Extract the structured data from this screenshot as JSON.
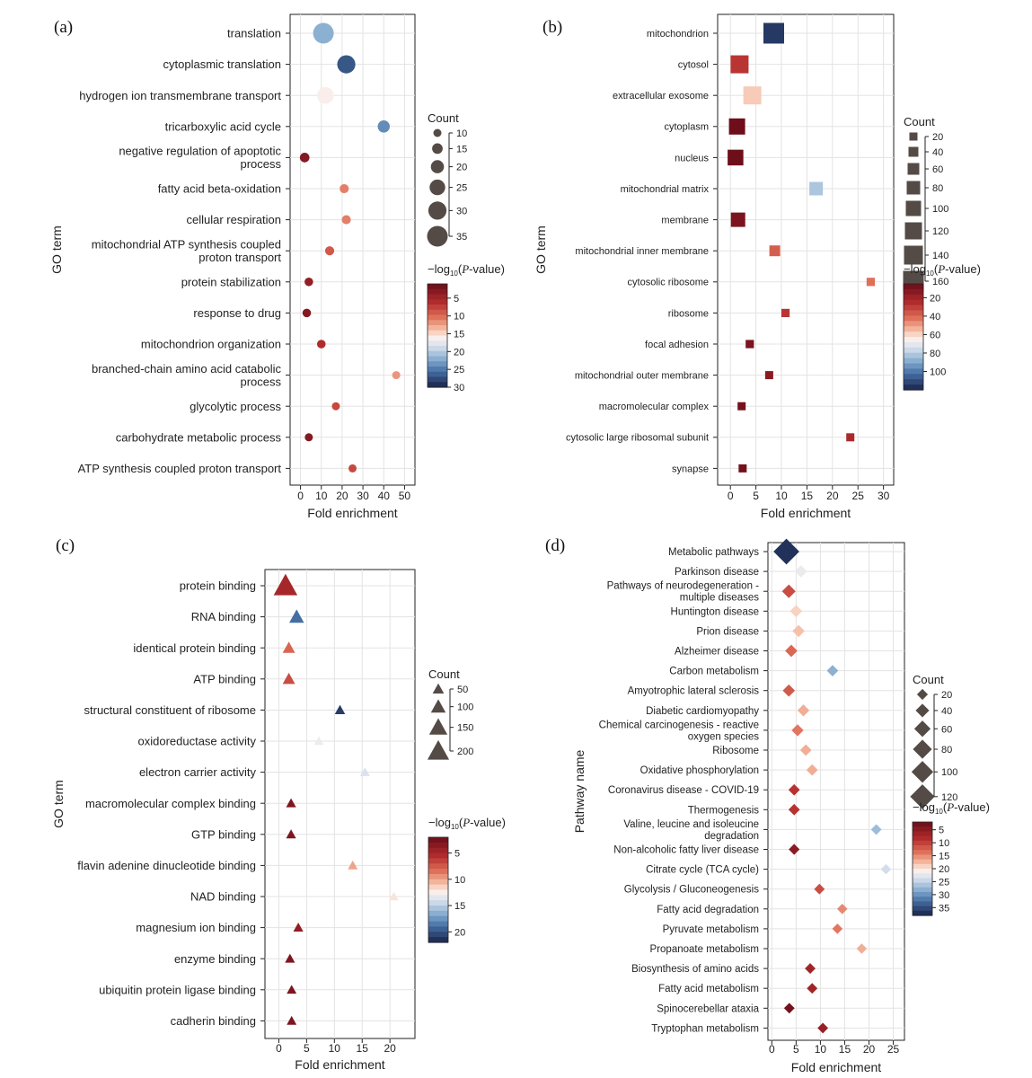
{
  "chart_data": [
    {
      "panel": "(a)",
      "type": "scatter",
      "marker": "circle",
      "xlabel": "Fold enrichment",
      "ylabel": "GO term",
      "xlim": [
        -5,
        55
      ],
      "xticks": [
        0,
        10,
        20,
        30,
        40,
        50
      ],
      "grid": true,
      "categories": [
        "translation",
        "cytoplasmic translation",
        "hydrogen ion transmembrane transport",
        "tricarboxylic acid cycle",
        "negative regulation of apoptotic process",
        "fatty acid beta-oxidation",
        "cellular respiration",
        "mitochondrial ATP synthesis coupled proton transport",
        "protein stabilization",
        "response to drug",
        "mitochondrion organization",
        "branched-chain amino acid catabolic process",
        "glycolytic process",
        "carbohydrate metabolic process",
        "ATP synthesis coupled proton transport"
      ],
      "category_lines": [
        [
          "translation"
        ],
        [
          "cytoplasmic translation"
        ],
        [
          "hydrogen ion transmembrane transport"
        ],
        [
          "tricarboxylic acid cycle"
        ],
        [
          "negative regulation of apoptotic",
          "process"
        ],
        [
          "fatty acid beta-oxidation"
        ],
        [
          "cellular respiration"
        ],
        [
          "mitochondrial ATP synthesis coupled",
          "proton transport"
        ],
        [
          "protein stabilization"
        ],
        [
          "response to drug"
        ],
        [
          "mitochondrion organization"
        ],
        [
          "branched-chain amino acid catabolic",
          "process"
        ],
        [
          "glycolytic process"
        ],
        [
          "carbohydrate metabolic process"
        ],
        [
          "ATP synthesis coupled proton transport"
        ]
      ],
      "x": [
        11,
        22,
        12,
        40,
        2,
        21,
        22,
        14,
        4,
        3,
        10,
        46,
        17,
        4,
        25
      ],
      "count": [
        35,
        30,
        27,
        18,
        13,
        12,
        12,
        12,
        11,
        11,
        11,
        10,
        10,
        10,
        10
      ],
      "neglog10p": [
        22,
        27,
        16,
        24,
        3,
        11,
        11,
        9,
        4,
        3,
        6,
        12,
        8,
        3,
        8
      ],
      "size_legend": {
        "title": "Count",
        "values": [
          10,
          15,
          20,
          25,
          30,
          35
        ],
        "min": 10,
        "max": 35,
        "rmin": 4.5,
        "rmax": 11.5
      },
      "color_legend": {
        "title_parts": [
          "−log",
          "10",
          "(",
          "P",
          "-value)"
        ],
        "min": 1,
        "max": 30,
        "ticks": [
          5,
          10,
          15,
          20,
          25,
          30
        ]
      }
    },
    {
      "panel": "(b)",
      "type": "scatter",
      "marker": "square",
      "xlabel": "Fold enrichment",
      "ylabel": "GO term",
      "xlim": [
        -2.5,
        32
      ],
      "xticks": [
        0,
        5,
        10,
        15,
        20,
        25,
        30
      ],
      "grid": true,
      "categories": [
        "mitochondrion",
        "cytosol",
        "extracellular exosome",
        "cytoplasm",
        "nucleus",
        "mitochondrial matrix",
        "membrane",
        "mitochondrial inner membrane",
        "cytosolic ribosome",
        "ribosome",
        "focal adhesion",
        "mitochondrial outer membrane",
        "macromolecular complex",
        "cytosolic large ribosomal subunit",
        "synapse"
      ],
      "category_lines": [
        [
          "mitochondrion"
        ],
        [
          "cytosol"
        ],
        [
          "extracellular exosome"
        ],
        [
          "cytoplasm"
        ],
        [
          "nucleus"
        ],
        [
          "mitochondrial matrix"
        ],
        [
          "membrane"
        ],
        [
          "mitochondrial inner membrane"
        ],
        [
          "cytosolic ribosome"
        ],
        [
          "ribosome"
        ],
        [
          "focal adhesion"
        ],
        [
          "mitochondrial outer membrane"
        ],
        [
          "macromolecular complex"
        ],
        [
          "cytosolic large ribosomal subunit"
        ],
        [
          "synapse"
        ]
      ],
      "x": [
        8.5,
        1.8,
        4.3,
        1.3,
        1.0,
        16.8,
        1.5,
        8.7,
        27.5,
        10.8,
        3.8,
        7.6,
        2.2,
        23.5,
        2.4
      ],
      "count": [
        165,
        130,
        130,
        110,
        105,
        80,
        90,
        50,
        22,
        22,
        22,
        20,
        20,
        20,
        18
      ],
      "neglog10p": [
        115,
        28,
        58,
        6,
        6,
        82,
        10,
        38,
        42,
        28,
        10,
        14,
        8,
        24,
        8
      ],
      "size_legend": {
        "title": "Count",
        "values": [
          20,
          40,
          60,
          80,
          100,
          120,
          140,
          160
        ],
        "min": 20,
        "max": 160,
        "rmin": 4.5,
        "rmax": 11.5
      },
      "color_legend": {
        "title_parts": [
          "−log",
          "10",
          "(",
          "P",
          "-value)"
        ],
        "min": 5,
        "max": 120,
        "ticks": [
          20,
          40,
          60,
          80,
          100
        ]
      }
    },
    {
      "panel": "(c)",
      "type": "scatter",
      "marker": "triangle",
      "xlabel": "Fold enrichment",
      "ylabel": "GO term",
      "xlim": [
        -2.5,
        24.5
      ],
      "xticks": [
        0,
        5,
        10,
        15,
        20
      ],
      "grid": true,
      "categories": [
        "protein binding",
        "RNA binding",
        "identical protein binding",
        "ATP binding",
        "structural constituent of ribosome",
        "oxidoreductase activity",
        "electron carrier activity",
        "macromolecular complex binding",
        "GTP binding",
        "flavin adenine dinucleotide binding",
        "NAD binding",
        "magnesium ion binding",
        "enzyme binding",
        "ubiquitin protein ligase binding",
        "cadherin binding"
      ],
      "category_lines": [
        [
          "protein binding"
        ],
        [
          "RNA binding"
        ],
        [
          "identical protein binding"
        ],
        [
          "ATP binding"
        ],
        [
          "structural constituent of ribosome"
        ],
        [
          "oxidoreductase activity"
        ],
        [
          "electron carrier activity"
        ],
        [
          "macromolecular complex binding"
        ],
        [
          "GTP binding"
        ],
        [
          "flavin adenine dinucleotide binding"
        ],
        [
          "NAD binding"
        ],
        [
          "magnesium ion binding"
        ],
        [
          "enzyme binding"
        ],
        [
          "ubiquitin protein ligase binding"
        ],
        [
          "cadherin binding"
        ]
      ],
      "x": [
        1.2,
        3.2,
        1.8,
        1.8,
        11.0,
        7.2,
        15.5,
        2.2,
        2.2,
        13.3,
        20.7,
        3.5,
        2.0,
        2.3,
        2.3
      ],
      "count": [
        230,
        100,
        65,
        65,
        35,
        25,
        25,
        30,
        30,
        28,
        22,
        30,
        30,
        28,
        28
      ],
      "neglog10p": [
        5,
        19,
        8,
        7,
        21,
        13,
        14,
        3,
        3,
        10,
        12,
        4,
        3,
        3,
        3
      ],
      "size_legend": {
        "title": "Count",
        "values": [
          50,
          100,
          150,
          200
        ],
        "min": 20,
        "max": 230,
        "rmin": 4.5,
        "rmax": 11.5
      },
      "color_legend": {
        "title_parts": [
          "−log",
          "10",
          "(",
          "P",
          "-value)"
        ],
        "min": 2,
        "max": 22,
        "ticks": [
          5,
          10,
          15,
          20
        ]
      }
    },
    {
      "panel": "(d)",
      "type": "scatter",
      "marker": "diamond",
      "xlabel": "Fold enrichment",
      "ylabel": "Pathway name",
      "xlim": [
        -0.8,
        27.3
      ],
      "xticks": [
        0,
        5,
        10,
        15,
        20,
        25
      ],
      "grid": true,
      "categories": [
        "Metabolic pathways",
        "Parkinson disease",
        "Pathways of neurodegeneration - multiple diseases",
        "Huntington disease",
        "Prion disease",
        "Alzheimer disease",
        "Carbon metabolism",
        "Amyotrophic lateral sclerosis",
        "Diabetic cardiomyopathy",
        "Chemical carcinogenesis - reactive oxygen species",
        "Ribosome",
        "Oxidative phosphorylation",
        "Coronavirus disease - COVID-19",
        "Thermogenesis",
        "Valine, leucine and isoleucine degradation",
        "Non-alcoholic fatty liver disease",
        "Citrate cycle (TCA cycle)",
        "Glycolysis / Gluconeogenesis",
        "Fatty acid degradation",
        "Pyruvate metabolism",
        "Propanoate metabolism",
        "Biosynthesis of amino acids",
        "Fatty acid metabolism",
        "Spinocerebellar ataxia",
        "Tryptophan metabolism"
      ],
      "category_lines": [
        [
          "Metabolic pathways"
        ],
        [
          "Parkinson disease"
        ],
        [
          "Pathways of neurodegeneration -",
          "multiple diseases"
        ],
        [
          "Huntington disease"
        ],
        [
          "Prion disease"
        ],
        [
          "Alzheimer disease"
        ],
        [
          "Carbon metabolism"
        ],
        [
          "Amyotrophic lateral sclerosis"
        ],
        [
          "Diabetic cardiomyopathy"
        ],
        [
          "Chemical carcinogenesis - reactive",
          "oxygen species"
        ],
        [
          "Ribosome"
        ],
        [
          "Oxidative phosphorylation"
        ],
        [
          "Coronavirus disease - COVID-19"
        ],
        [
          "Thermogenesis"
        ],
        [
          "Valine, leucine and isoleucine",
          "degradation"
        ],
        [
          "Non-alcoholic fatty liver disease"
        ],
        [
          "Citrate cycle (TCA cycle)"
        ],
        [
          "Glycolysis / Gluconeogenesis"
        ],
        [
          "Fatty acid degradation"
        ],
        [
          "Pyruvate metabolism"
        ],
        [
          "Propanoate metabolism"
        ],
        [
          "Biosynthesis of amino acids"
        ],
        [
          "Fatty acid metabolism"
        ],
        [
          "Spinocerebellar ataxia"
        ],
        [
          "Tryptophan metabolism"
        ]
      ],
      "x": [
        3.0,
        6.0,
        3.5,
        5.0,
        5.5,
        4.0,
        12.5,
        3.5,
        6.5,
        5.3,
        7.0,
        8.3,
        4.6,
        4.6,
        21.5,
        4.6,
        23.5,
        9.8,
        14.5,
        13.5,
        18.5,
        7.9,
        8.3,
        3.6,
        10.5
      ],
      "count": [
        130,
        30,
        40,
        30,
        30,
        30,
        24,
        30,
        28,
        28,
        24,
        24,
        24,
        24,
        18,
        20,
        16,
        18,
        16,
        16,
        16,
        18,
        18,
        18,
        18
      ],
      "neglog10p": [
        37,
        22,
        11,
        19,
        18,
        13,
        28,
        12,
        17,
        14,
        17,
        17,
        9,
        9,
        27,
        5,
        24,
        11,
        15,
        14,
        17,
        7,
        7,
        3,
        6
      ],
      "size_legend": {
        "title": "Count",
        "values": [
          20,
          40,
          60,
          80,
          100,
          120
        ],
        "min": 14,
        "max": 130,
        "rmin": 4.5,
        "rmax": 11.5
      },
      "color_legend": {
        "title_parts": [
          "−log",
          "10",
          "(",
          "P",
          "-value)"
        ],
        "min": 2,
        "max": 38,
        "ticks": [
          5,
          10,
          15,
          20,
          25,
          30,
          35
        ]
      }
    }
  ]
}
